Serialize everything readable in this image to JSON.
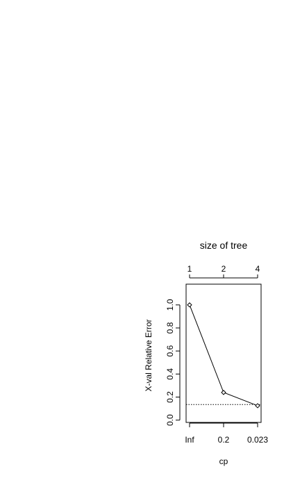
{
  "chart_data": {
    "type": "line",
    "title": "size of tree",
    "xlabel": "cp",
    "ylabel": "X-val Relative Error",
    "x_tick_labels": [
      "Inf",
      "0.2",
      "0.023"
    ],
    "top_axis_tick_labels": [
      "1",
      "2",
      "4"
    ],
    "y_ticks": [
      0.0,
      0.2,
      0.4,
      0.6,
      0.8,
      1.0
    ],
    "y_tick_labels": [
      "0.0",
      "0.2",
      "0.4",
      "0.6",
      "0.8",
      "1.0"
    ],
    "ylim": [
      -0.02,
      1.18
    ],
    "series": [
      {
        "values": [
          1.0,
          0.24,
          0.125
        ]
      }
    ],
    "reference_line_y": 0.135,
    "reference_line_style": "dotted",
    "grid": false,
    "legend": "none",
    "colors": {
      "line": "#000000",
      "axis": "#000000",
      "background": "#ffffff"
    }
  }
}
